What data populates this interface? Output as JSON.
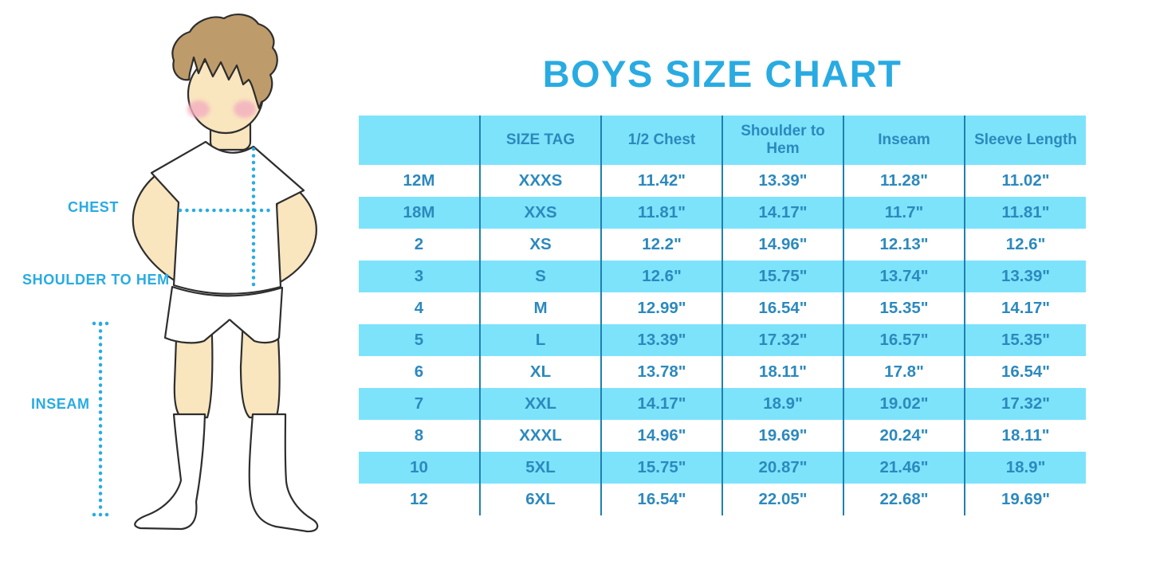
{
  "title": "BOYS SIZE CHART",
  "figure": {
    "name": "boy-measurement-illustration",
    "labels": {
      "chest": "CHEST",
      "shoulder_to_hem": "SHOULDER TO HEM",
      "inseam": "INSEAM"
    }
  },
  "colors": {
    "accent_blue": "#29ABE2",
    "table_stripe": "#7DE3FB",
    "table_text": "#2C89BD",
    "table_divider": "#1F80B1",
    "skin": "#F9E5BE",
    "hair": "#BE9B6A",
    "blush": "#F3AEC0",
    "outline": "#2E2E2E"
  },
  "chart_data": {
    "type": "table",
    "title": "BOYS SIZE CHART",
    "columns": [
      "",
      "SIZE TAG",
      "1/2 Chest",
      "Shoulder to Hem",
      "Inseam",
      "Sleeve Length"
    ],
    "rows": [
      [
        "12M",
        "XXXS",
        "11.42\"",
        "13.39\"",
        "11.28\"",
        "11.02\""
      ],
      [
        "18M",
        "XXS",
        "11.81\"",
        "14.17\"",
        "11.7\"",
        "11.81\""
      ],
      [
        "2",
        "XS",
        "12.2\"",
        "14.96\"",
        "12.13\"",
        "12.6\""
      ],
      [
        "3",
        "S",
        "12.6\"",
        "15.75\"",
        "13.74\"",
        "13.39\""
      ],
      [
        "4",
        "M",
        "12.99\"",
        "16.54\"",
        "15.35\"",
        "14.17\""
      ],
      [
        "5",
        "L",
        "13.39\"",
        "17.32\"",
        "16.57\"",
        "15.35\""
      ],
      [
        "6",
        "XL",
        "13.78\"",
        "18.11\"",
        "17.8\"",
        "16.54\""
      ],
      [
        "7",
        "XXL",
        "14.17\"",
        "18.9\"",
        "19.02\"",
        "17.32\""
      ],
      [
        "8",
        "XXXL",
        "14.96\"",
        "19.69\"",
        "20.24\"",
        "18.11\""
      ],
      [
        "10",
        "5XL",
        "15.75\"",
        "20.87\"",
        "21.46\"",
        "18.9\""
      ],
      [
        "12",
        "6XL",
        "16.54\"",
        "22.05\"",
        "22.68\"",
        "19.69\""
      ]
    ],
    "layout": {
      "stripe_pattern": "header and alternate rows light blue",
      "column_dividers": true,
      "horizontal_lines": false
    }
  }
}
